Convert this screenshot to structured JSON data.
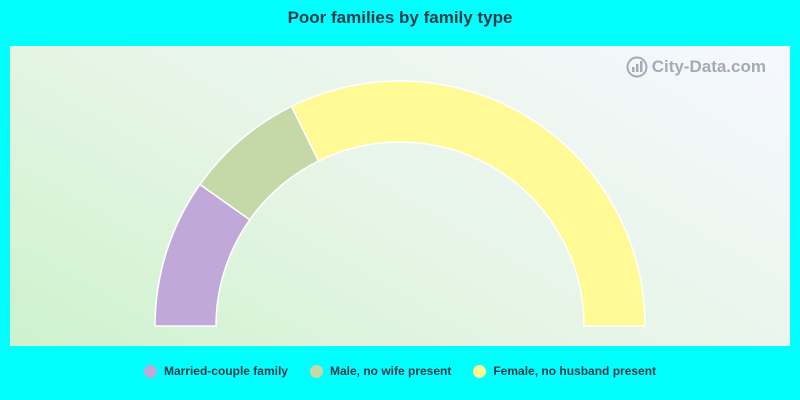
{
  "chart_data": {
    "type": "pie",
    "title": "Poor families by family type",
    "categories": [
      "Married-couple family",
      "Male, no wife present",
      "Female, no husband present"
    ],
    "values": [
      19.6,
      15.8,
      64.6
    ],
    "colors": [
      "#c0a8d8",
      "#c5d9a8",
      "#fffa96"
    ],
    "legend_position": "bottom"
  },
  "watermark": {
    "text": "City-Data.com"
  }
}
